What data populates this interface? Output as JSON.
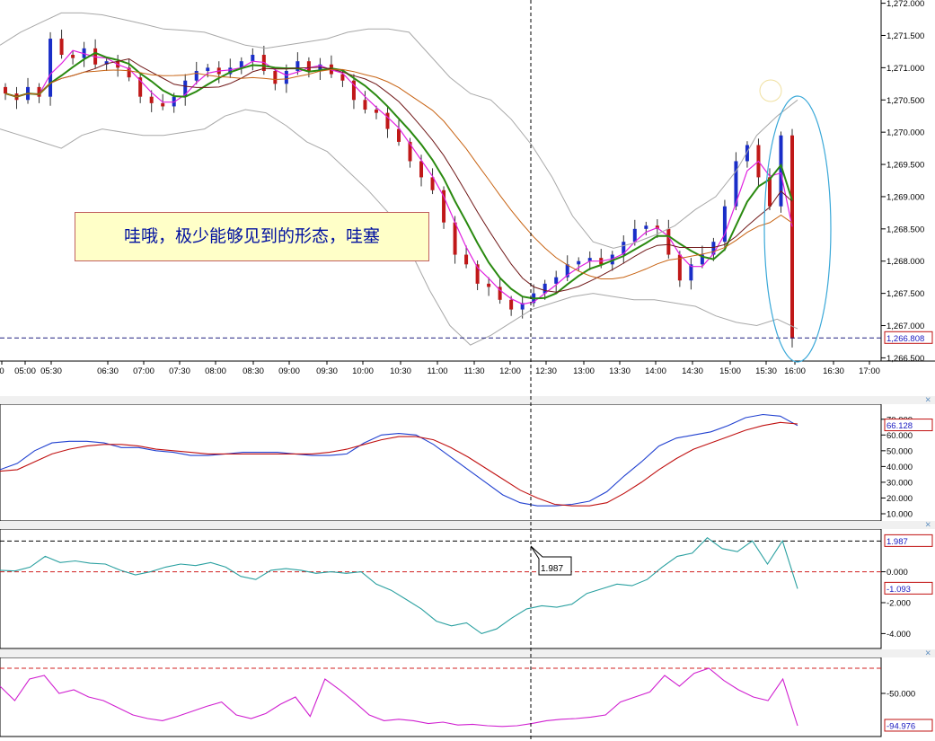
{
  "chart_data": [
    {
      "panel": "price",
      "type": "candlestick",
      "y_ticks": [
        "1,272.000",
        "1,271.500",
        "1,271.000",
        "1,270.500",
        "1,270.000",
        "1,269.500",
        "1,269.000",
        "1,268.500",
        "1,268.000",
        "1,267.500",
        "1,267.000",
        "1,266.500"
      ],
      "x_ticks": [
        "0",
        "05:00",
        "05:30",
        "06:30",
        "07:00",
        "07:30",
        "08:00",
        "08:30",
        "09:00",
        "09:30",
        "10:00",
        "10:30",
        "11:00",
        "11:30",
        "12:00",
        "12:30",
        "13:00",
        "13:30",
        "14:00",
        "14:30",
        "15:00",
        "15:30",
        "16:00",
        "16:30",
        "17:00"
      ],
      "ylim": [
        1266.45,
        1272.05
      ],
      "current_price_label": "1,266.808",
      "current_price": 1266.808,
      "annotation": "哇哦，极少能够见到的形态，哇塞",
      "colors": {
        "up": "#1a2ec8",
        "down": "#c01818",
        "bollinger": "#a8a8a8",
        "ma_fast": "#e020e0",
        "ma_mid": "#2a8a10",
        "ma_slow": "#701818",
        "ma_long": "#c86414",
        "crosshair": "#000000",
        "ellipse": "#3aa8d8",
        "price_line": "#202080"
      },
      "close_series": [
        1270.6,
        1270.5,
        1270.7,
        1270.55,
        1271.45,
        1271.2,
        1271.15,
        1271.3,
        1271.05,
        1271.1,
        1271.0,
        1270.85,
        1270.55,
        1270.45,
        1270.4,
        1270.55,
        1270.8,
        1270.95,
        1271.0,
        1270.9,
        1271.0,
        1271.1,
        1271.2,
        1270.95,
        1270.75,
        1270.95,
        1271.1,
        1270.95,
        1271.05,
        1270.9,
        1270.8,
        1270.5,
        1270.35,
        1270.3,
        1270.05,
        1269.85,
        1269.55,
        1269.3,
        1269.1,
        1268.6,
        1268.1,
        1267.95,
        1267.65,
        1267.6,
        1267.4,
        1267.25,
        1267.35,
        1267.5,
        1267.65,
        1267.75,
        1267.95,
        1268.0,
        1268.05,
        1267.95,
        1268.1,
        1268.3,
        1268.5,
        1268.55,
        1268.5,
        1268.1,
        1267.7,
        1267.95,
        1268.1,
        1268.3,
        1268.85,
        1269.55,
        1269.8,
        1269.3,
        1268.85,
        1269.95,
        1266.8
      ],
      "bollinger_upper": [
        1271.35,
        1271.55,
        1271.7,
        1271.85,
        1271.85,
        1271.82,
        1271.75,
        1271.68,
        1271.6,
        1271.58,
        1271.55,
        1271.45,
        1271.35,
        1271.3,
        1271.35,
        1271.4,
        1271.45,
        1271.55,
        1271.6,
        1271.6,
        1271.55,
        1271.2,
        1270.85,
        1270.6,
        1270.5,
        1270.2,
        1269.8,
        1269.3,
        1268.7,
        1268.3,
        1268.2,
        1268.28,
        1268.4,
        1268.55,
        1268.8,
        1269.0,
        1269.4,
        1269.95,
        1270.25,
        1270.5
      ],
      "bollinger_lower": [
        1270.05,
        1269.95,
        1269.85,
        1269.75,
        1269.95,
        1270.05,
        1270.0,
        1269.95,
        1269.95,
        1270.0,
        1270.05,
        1270.25,
        1270.35,
        1270.3,
        1270.1,
        1269.85,
        1269.7,
        1269.4,
        1269.1,
        1268.75,
        1268.2,
        1267.55,
        1267.0,
        1266.7,
        1266.85,
        1267.05,
        1267.25,
        1267.35,
        1267.45,
        1267.5,
        1267.45,
        1267.4,
        1267.4,
        1267.35,
        1267.3,
        1267.15,
        1267.05,
        1267.0,
        1267.1,
        1266.95
      ]
    },
    {
      "panel": "oscillator_1",
      "type": "line",
      "y_ticks": [
        "70.000",
        "60.000",
        "50.000",
        "40.000",
        "30.000",
        "20.000",
        "10.000"
      ],
      "ylim": [
        10,
        75
      ],
      "value_label": "66.128",
      "series": [
        {
          "color": "#2040d0",
          "values": [
            38,
            42,
            50,
            55,
            56,
            56,
            55,
            52,
            52,
            50,
            49,
            47,
            47,
            48,
            49,
            49,
            49,
            48,
            47,
            47,
            48,
            55,
            60,
            61,
            60,
            54,
            46,
            38,
            30,
            22,
            17,
            15,
            15,
            16,
            18,
            24,
            34,
            43,
            53,
            58,
            60,
            62,
            66,
            71,
            73,
            72,
            66
          ]
        },
        {
          "color": "#c01010",
          "values": [
            37,
            38,
            43,
            48,
            51,
            53,
            54,
            54,
            53,
            51,
            50,
            49,
            48,
            48,
            48,
            48,
            48,
            48,
            48,
            49,
            51,
            54,
            57,
            59,
            59,
            57,
            52,
            46,
            39,
            32,
            25,
            20,
            16,
            15,
            15,
            17,
            23,
            30,
            38,
            45,
            51,
            55,
            59,
            63,
            66,
            68,
            67
          ]
        }
      ]
    },
    {
      "panel": "oscillator_2",
      "type": "line",
      "y_ticks": [
        "0.000",
        "-2.000",
        "-4.000"
      ],
      "ylim": [
        -4.5,
        2.3
      ],
      "value_label_top": "1.987",
      "value_label_bottom": "-1.093",
      "tooltip_value": "1.987",
      "reference_levels": [
        1.987,
        0.0
      ],
      "series": [
        {
          "color": "#2aa0a0",
          "values": [
            0.1,
            0.05,
            0.3,
            1.0,
            0.6,
            0.7,
            0.55,
            0.5,
            0.1,
            -0.2,
            0.0,
            0.3,
            0.5,
            0.4,
            0.6,
            0.3,
            -0.3,
            -0.5,
            0.1,
            0.2,
            0.1,
            -0.1,
            0.0,
            -0.1,
            0.0,
            -0.8,
            -1.2,
            -1.8,
            -2.4,
            -3.2,
            -3.5,
            -3.3,
            -4.0,
            -3.7,
            -3.0,
            -2.4,
            -2.2,
            -2.3,
            -2.1,
            -1.4,
            -1.1,
            -0.8,
            -0.9,
            -0.5,
            0.3,
            1.0,
            1.2,
            2.2,
            1.5,
            1.3,
            2.0,
            0.5,
            2.0,
            -1.093
          ]
        }
      ]
    },
    {
      "panel": "oscillator_3",
      "type": "line",
      "y_ticks": [
        "-50.000"
      ],
      "ylim": [
        -100,
        -10
      ],
      "value_label": "-94.976",
      "reference_levels": [
        -15
      ],
      "series": [
        {
          "color": "#d020d0",
          "values": [
            -40,
            -60,
            -30,
            -25,
            -50,
            -45,
            -55,
            -60,
            -70,
            -80,
            -85,
            -88,
            -82,
            -75,
            -68,
            -62,
            -80,
            -85,
            -78,
            -65,
            -55,
            -82,
            -30,
            -45,
            -62,
            -80,
            -88,
            -86,
            -88,
            -92,
            -90,
            -94,
            -93,
            -95,
            -96,
            -95,
            -92,
            -88,
            -86,
            -85,
            -83,
            -80,
            -62,
            -55,
            -48,
            -25,
            -40,
            -22,
            -15,
            -32,
            -45,
            -55,
            -60,
            -30,
            -94.976
          ]
        }
      ]
    }
  ]
}
